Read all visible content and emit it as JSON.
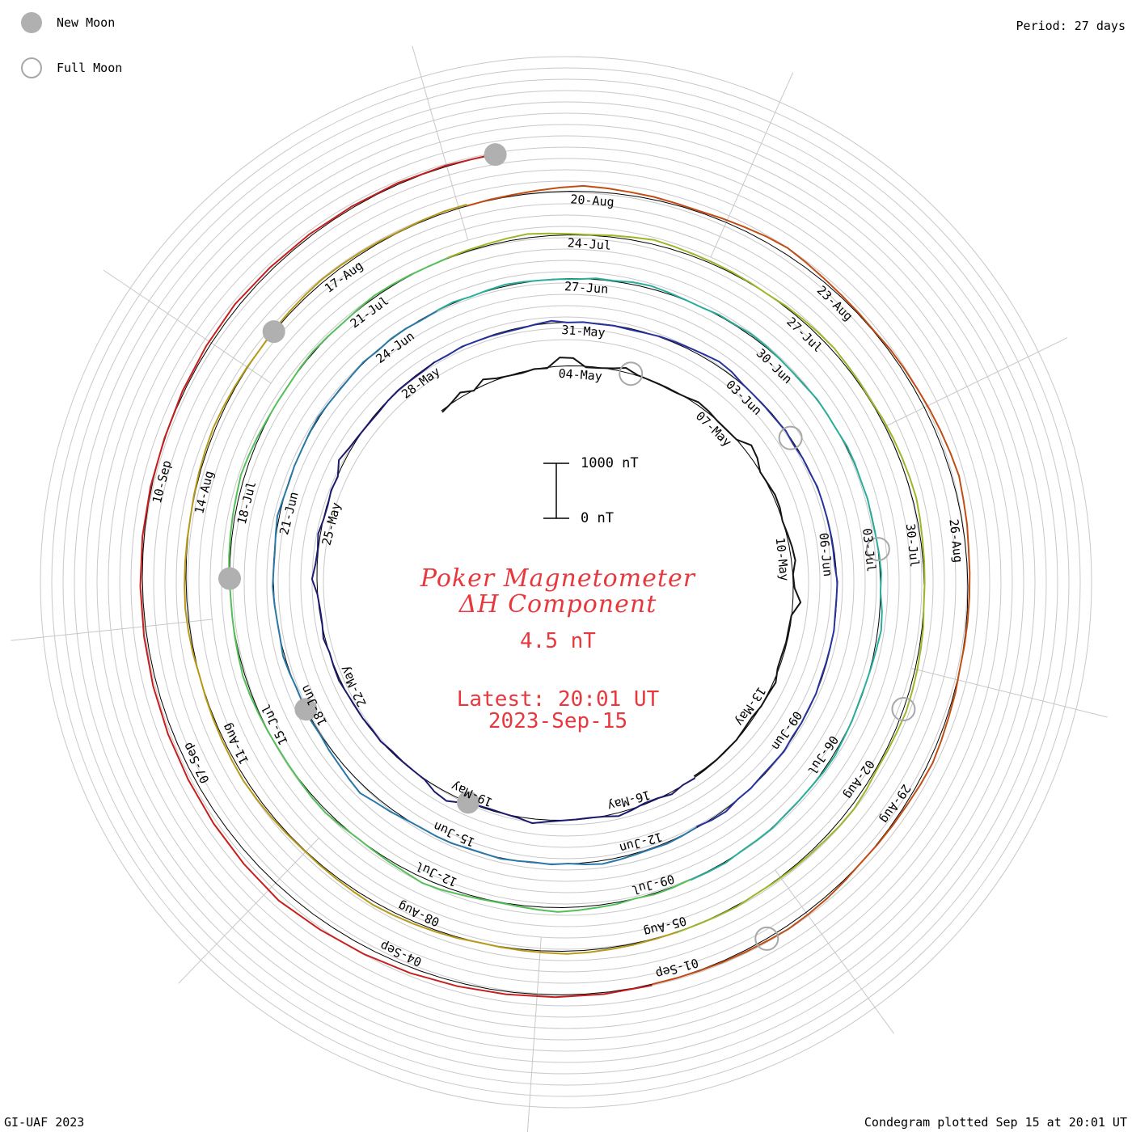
{
  "legend": {
    "new_moon_label": "New Moon",
    "full_moon_label": "Full Moon"
  },
  "header": {
    "period_label": "Period: 27 days"
  },
  "footer": {
    "left_label": "GI-UAF 2023",
    "right_label": "Condegram plotted Sep 15 at 20:01 UT"
  },
  "title": {
    "line1": "Poker Magnetometer",
    "line2": "ΔH Component",
    "value": "4.5 nT",
    "latest_line1": "Latest: 20:01 UT",
    "latest_line2": "2023-Sep-15"
  },
  "scale": {
    "top_label": "1000 nT",
    "bottom_label": "0 nT"
  },
  "colors": {
    "title": "#e8383d",
    "grid": "#c8c8c8",
    "new_moon_fill": "#b0b0b0",
    "full_moon_stroke": "#a8a8a8"
  },
  "chart_data": {
    "type": "line",
    "projection": "spiral condegram",
    "period_days": 27,
    "start_date": "2023-05-01",
    "end_date": "2023-09-15",
    "grid": true,
    "series": [
      {
        "color": "#141414",
        "values": [
          40,
          120,
          260,
          80,
          300,
          150,
          90,
          60,
          110,
          70,
          420,
          380,
          60,
          80,
          140,
          260,
          120,
          90,
          80,
          70,
          110,
          200,
          160,
          90,
          80,
          100,
          380,
          280,
          90,
          120,
          180,
          160,
          90,
          140,
          200,
          240,
          110,
          150,
          380,
          90,
          60,
          70,
          40,
          50,
          180,
          120,
          110,
          40,
          60,
          100,
          80,
          90,
          70,
          50
        ]
      },
      {
        "color": "#1c1a6e",
        "values": [
          120,
          90,
          180,
          80,
          60,
          140,
          220,
          120,
          80,
          90,
          110,
          160,
          260,
          140,
          90,
          60,
          80,
          200,
          380,
          300,
          120,
          90,
          80,
          60,
          110,
          70,
          90,
          80,
          100,
          150,
          120,
          90,
          160,
          80,
          70,
          110,
          280,
          160,
          120,
          180,
          90,
          70,
          120,
          80,
          300,
          180,
          120,
          80,
          60,
          90,
          100,
          80,
          70,
          110
        ]
      },
      {
        "color": "#26339c",
        "values": [
          100,
          80,
          120,
          90,
          80,
          60,
          70,
          120,
          180,
          90,
          110,
          80,
          90,
          60,
          80,
          120,
          140,
          160,
          200,
          260,
          220,
          120,
          90,
          80,
          70,
          110,
          60,
          90,
          80,
          120,
          100,
          90,
          80,
          70,
          60,
          120,
          90,
          80,
          110,
          90,
          80,
          70,
          100,
          80,
          90,
          70,
          120,
          80,
          70,
          110,
          90,
          180,
          140,
          60
        ]
      },
      {
        "color": "#2a78a8",
        "values": [
          80,
          110,
          150,
          120,
          140,
          180,
          220,
          160,
          90,
          120,
          80,
          100,
          130,
          90,
          80,
          120,
          110,
          90,
          120,
          200,
          260,
          380,
          300,
          220,
          180,
          120,
          140,
          110,
          80,
          120,
          160,
          100,
          90,
          110,
          130,
          90,
          80,
          120,
          170,
          110,
          80,
          100,
          90,
          120,
          140,
          100,
          80,
          90,
          130,
          80,
          120,
          110,
          70,
          100
        ]
      },
      {
        "color": "#2aae9a",
        "values": [
          110,
          140,
          90,
          120,
          160,
          130,
          100,
          90,
          80,
          140,
          120,
          180,
          200,
          150,
          110,
          90,
          130,
          120,
          160,
          140,
          110,
          90,
          80,
          120,
          100,
          90,
          130,
          120,
          90,
          110,
          80,
          90,
          120,
          140,
          100,
          180,
          220,
          160,
          120,
          90,
          80,
          110,
          120,
          160,
          140,
          100,
          90,
          80,
          120,
          100,
          90,
          140,
          120,
          110
        ]
      },
      {
        "color": "#55c05a",
        "values": [
          90,
          120,
          140,
          100,
          160,
          180,
          220,
          260,
          200,
          150,
          120,
          140,
          180,
          240,
          280,
          200,
          160,
          120,
          100,
          140,
          180,
          160,
          120,
          100,
          90,
          110,
          130,
          160,
          180,
          140,
          120,
          100,
          90,
          120,
          140,
          160,
          180,
          200,
          240,
          200,
          160,
          120,
          100,
          90,
          120,
          140,
          110,
          90,
          120,
          160,
          140,
          120,
          100,
          110
        ]
      },
      {
        "color": "#9ab82a",
        "values": [
          120,
          140,
          160,
          200,
          240,
          180,
          140,
          120,
          160,
          200,
          260,
          220,
          180,
          160,
          140,
          120,
          100,
          140,
          160,
          180,
          200,
          160,
          140,
          120,
          160,
          180,
          200,
          220,
          240,
          200,
          160,
          140,
          120,
          100,
          140,
          160,
          180,
          200,
          220,
          180,
          160,
          140,
          200,
          240,
          220,
          180,
          160,
          140,
          120,
          100,
          140,
          120,
          110,
          120
        ]
      },
      {
        "color": "#b89a1a",
        "values": [
          110,
          120,
          140,
          160,
          180,
          200,
          160,
          140,
          120,
          100,
          140,
          160,
          180,
          200,
          220,
          180,
          160,
          140,
          120,
          140,
          160,
          180,
          200,
          180,
          160,
          140,
          120,
          100,
          140,
          160,
          180,
          160,
          140,
          120,
          100,
          120,
          140,
          160,
          180,
          160,
          140,
          120,
          100,
          140,
          160,
          180,
          200,
          180,
          160,
          140,
          120,
          140,
          160,
          150
        ]
      },
      {
        "color": "#c04e14",
        "values": [
          100,
          120,
          140,
          180,
          240,
          300,
          260,
          220,
          200,
          160,
          140,
          180,
          220,
          280,
          320,
          260,
          200,
          160,
          140,
          120,
          160,
          180,
          200,
          240,
          280,
          320,
          360,
          300,
          260,
          200,
          180,
          160,
          140,
          120,
          100,
          140,
          160,
          200,
          240,
          200,
          160,
          140,
          120,
          100,
          140,
          180,
          200,
          220,
          180,
          160,
          140,
          120,
          110,
          100
        ]
      },
      {
        "color": "#c81e1e",
        "values": [
          140,
          160,
          180,
          200,
          240,
          300,
          360,
          420,
          500,
          440,
          380,
          320,
          280,
          240,
          200,
          180,
          160,
          140,
          120,
          160,
          200,
          240,
          200,
          180,
          160,
          150,
          140,
          130
        ]
      }
    ],
    "date_labels": [
      [
        "04-May",
        "07-May",
        "10-May",
        "13-May",
        "16-May",
        "19-May",
        "22-May",
        "25-May",
        "28-May"
      ],
      [
        "31-May",
        "03-Jun",
        "06-Jun",
        "09-Jun",
        "12-Jun",
        "15-Jun",
        "18-Jun",
        "21-Jun",
        "24-Jun"
      ],
      [
        "27-Jun",
        "30-Jun",
        "03-Jul",
        "06-Jul",
        "09-Jul",
        "12-Jul",
        "15-Jul",
        "18-Jul",
        "21-Jul"
      ],
      [
        "24-Jul",
        "27-Jul",
        "30-Jul",
        "02-Aug",
        "05-Aug",
        "08-Aug",
        "11-Aug",
        "14-Aug",
        "17-Aug"
      ],
      [
        "20-Aug",
        "23-Aug",
        "26-Aug",
        "29-Aug",
        "01-Sep",
        "04-Sep",
        "07-Sep",
        "10-Sep"
      ]
    ],
    "new_moons": [
      "2023-05-19",
      "2023-06-18",
      "2023-07-17",
      "2023-08-16",
      "2023-09-15"
    ],
    "full_moons": [
      "2023-05-05",
      "2023-06-04",
      "2023-07-03",
      "2023-08-01",
      "2023-08-31"
    ],
    "scale_bar": {
      "min": 0,
      "max": 1000,
      "unit": "nT"
    }
  }
}
